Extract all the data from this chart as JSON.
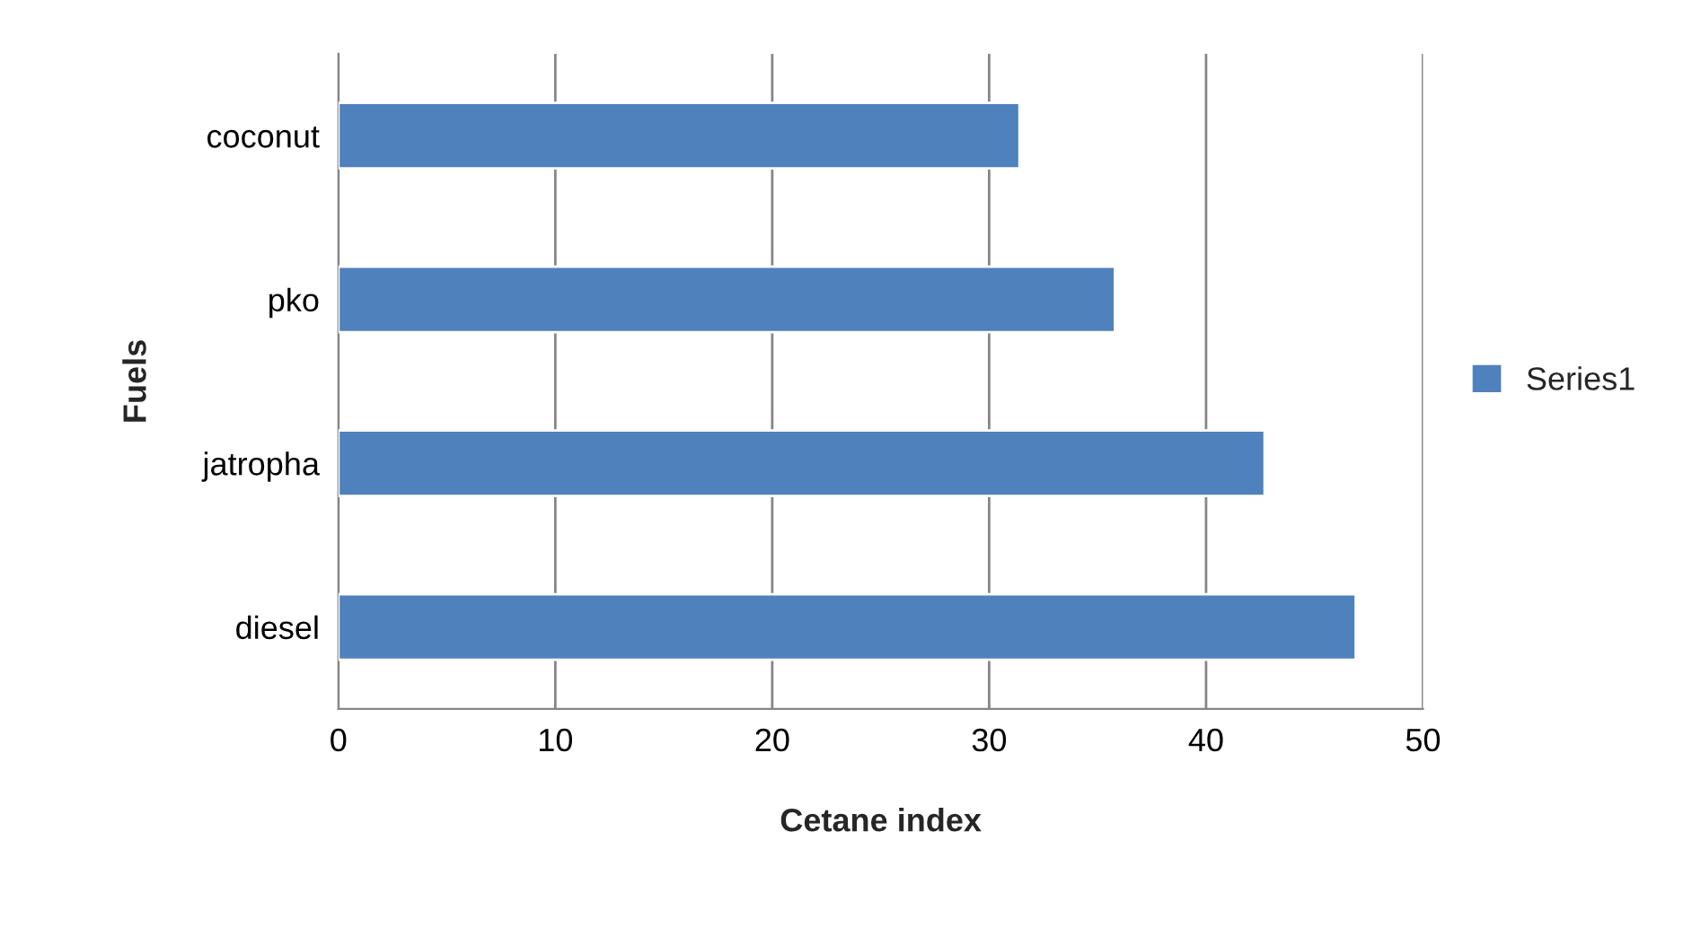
{
  "chart_data": {
    "type": "bar",
    "orientation": "horizontal",
    "xlabel": "Cetane index",
    "ylabel": "Fuels",
    "categories": [
      "coconut",
      "pko",
      "jatropha",
      "diesel"
    ],
    "series": [
      {
        "name": "Series1",
        "color": "#4f81bd",
        "values": [
          31.4,
          35.8,
          42.7,
          46.9
        ]
      }
    ],
    "xlim": [
      0,
      50
    ],
    "xticks": [
      0,
      10,
      20,
      30,
      40,
      50
    ],
    "grid": "x",
    "legend": "right"
  }
}
